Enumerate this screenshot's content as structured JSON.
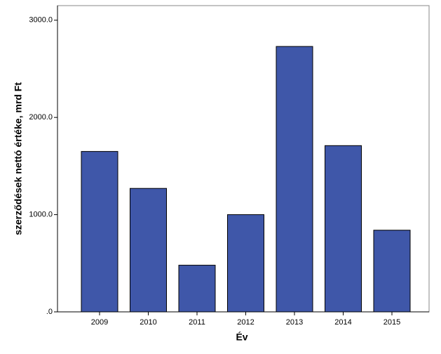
{
  "chart_data": {
    "type": "bar",
    "x_label": "Év",
    "y_label": "szerződések nettó értéke, mrd Ft",
    "categories": [
      "2009",
      "2010",
      "2011",
      "2012",
      "2013",
      "2014",
      "2015"
    ],
    "values": [
      1650,
      1270,
      480,
      1000,
      2730,
      1710,
      840
    ],
    "color": "#3f57a9",
    "ylim": [
      0,
      3150
    ],
    "yticks": [
      {
        "value": 0,
        "label": ".0"
      },
      {
        "value": 1000,
        "label": "1000.0"
      },
      {
        "value": 2000,
        "label": "2000.0"
      },
      {
        "value": 3000,
        "label": "3000.0"
      }
    ],
    "grid": false
  }
}
